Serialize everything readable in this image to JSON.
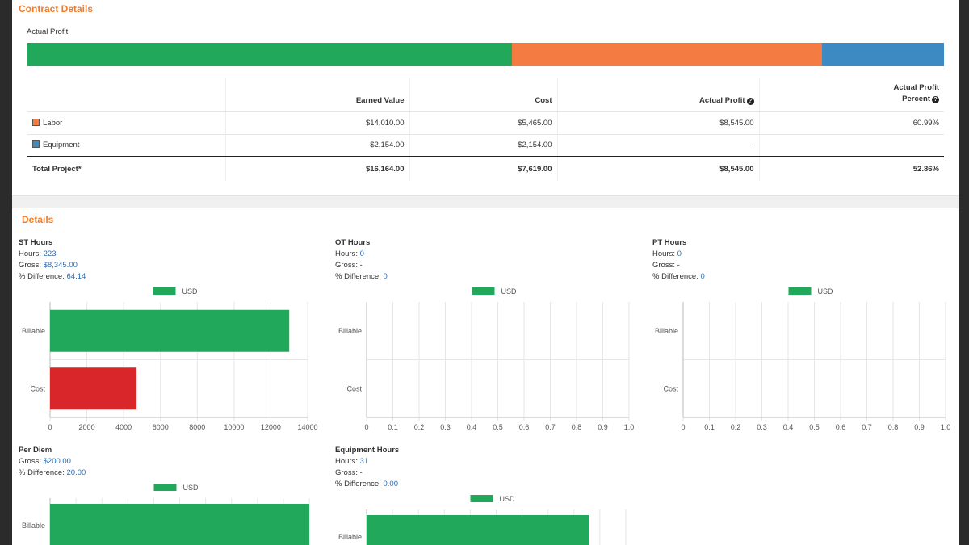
{
  "contract": {
    "title": "Contract Details",
    "profit_label": "Actual Profit",
    "bar_colors": {
      "green": "#21a85a",
      "orange": "#f47c42",
      "blue": "#3d8ac3"
    },
    "table": {
      "headers": [
        "",
        "Earned Value",
        "Cost",
        "Actual Profit",
        "Actual Profit",
        "Percent"
      ],
      "rows": [
        {
          "label": "Labor",
          "color": "#f47c42",
          "earned": "$14,010.00",
          "cost": "$5,465.00",
          "profit": "$8,545.00",
          "percent": "60.99%"
        },
        {
          "label": "Equipment",
          "color": "#3d8ac3",
          "earned": "$2,154.00",
          "cost": "$2,154.00",
          "profit": "-",
          "percent": ""
        }
      ],
      "total": {
        "label": "Total Project*",
        "earned": "$16,164.00",
        "cost": "$7,619.00",
        "profit": "$8,545.00",
        "percent": "52.86%"
      }
    }
  },
  "details": {
    "title": "Details",
    "legend_label": "USD",
    "stats": {
      "st": {
        "title": "ST Hours",
        "hours_label": "Hours:",
        "hours": "223",
        "gross_label": "Gross:",
        "gross": "$8,345.00",
        "diff_label": "% Difference:",
        "diff": "64.14"
      },
      "ot": {
        "title": "OT Hours",
        "hours_label": "Hours:",
        "hours": "0",
        "gross_label": "Gross:",
        "gross": "-",
        "diff_label": "% Difference:",
        "diff": "0"
      },
      "pt": {
        "title": "PT Hours",
        "hours_label": "Hours:",
        "hours": "0",
        "gross_label": "Gross:",
        "gross": "-",
        "diff_label": "% Difference:",
        "diff": "0"
      },
      "perdiem": {
        "title": "Per Diem",
        "gross_label": "Gross:",
        "gross": "$200.00",
        "diff_label": "% Difference:",
        "diff": "20.00"
      },
      "equip": {
        "title": "Equipment Hours",
        "hours_label": "Hours:",
        "hours": "31",
        "gross_label": "Gross:",
        "gross": "-",
        "diff_label": "% Difference:",
        "diff": "0.00"
      }
    }
  },
  "chart_data": [
    {
      "type": "bar",
      "orientation": "horizontal",
      "categories": [
        "Billable",
        "Cost"
      ],
      "values": [
        13000,
        4700
      ],
      "colors": [
        "#21a85a",
        "#d9262a"
      ],
      "xlim": [
        0,
        14000
      ],
      "ticks": [
        "0",
        "2000",
        "4000",
        "6000",
        "8000",
        "10000",
        "12000",
        "14000"
      ],
      "legend": "USD"
    },
    {
      "type": "bar",
      "orientation": "horizontal",
      "categories": [
        "Billable",
        "Cost"
      ],
      "values": [
        0,
        0
      ],
      "colors": [
        "#21a85a",
        "#d9262a"
      ],
      "xlim": [
        0,
        1
      ],
      "ticks": [
        "0",
        "0.1",
        "0.2",
        "0.3",
        "0.4",
        "0.5",
        "0.6",
        "0.7",
        "0.8",
        "0.9",
        "1.0"
      ],
      "legend": "USD"
    },
    {
      "type": "bar",
      "orientation": "horizontal",
      "categories": [
        "Billable",
        "Cost"
      ],
      "values": [
        0,
        0
      ],
      "colors": [
        "#21a85a",
        "#d9262a"
      ],
      "xlim": [
        0,
        1
      ],
      "ticks": [
        "0",
        "0.1",
        "0.2",
        "0.3",
        "0.4",
        "0.5",
        "0.6",
        "0.7",
        "0.8",
        "0.9",
        "1.0"
      ],
      "legend": "USD"
    },
    {
      "type": "bar",
      "orientation": "horizontal",
      "categories": [
        "Billable"
      ],
      "values": [
        1
      ],
      "colors": [
        "#21a85a"
      ],
      "xlim": [
        0,
        1
      ],
      "legend": "USD"
    },
    {
      "type": "bar",
      "orientation": "horizontal",
      "categories": [
        "Billable"
      ],
      "values": [
        1
      ],
      "colors": [
        "#21a85a"
      ],
      "xlim": [
        0,
        1.2
      ],
      "legend": "USD"
    }
  ],
  "profit_shares": [
    0.529,
    0.338,
    0.133
  ]
}
